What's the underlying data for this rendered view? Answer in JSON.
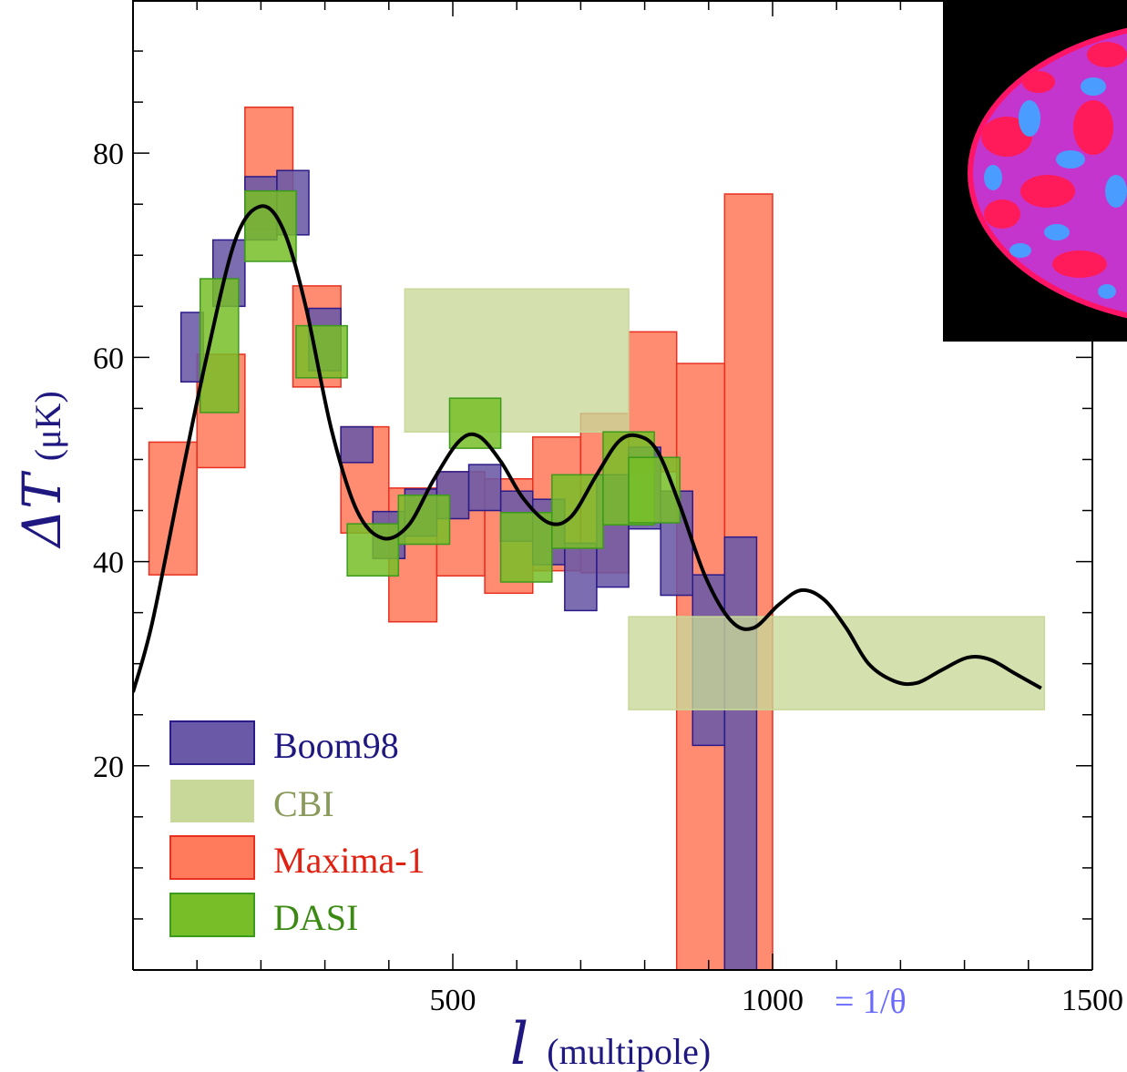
{
  "chart_data": {
    "type": "bar",
    "xlabel": {
      "symbol": "l",
      "text": "(multipole)"
    },
    "ylabel": {
      "symbol": "ΔT",
      "text": "(μK)"
    },
    "xlim": [
      0,
      1500
    ],
    "ylim": [
      0,
      95
    ],
    "x_ticks": [
      500,
      1000,
      1500
    ],
    "y_ticks": [
      20,
      40,
      60,
      80
    ],
    "annotation": "= 1/θ",
    "legend_position": "bottom-left",
    "grid": false,
    "series": [
      {
        "name": "Boom98",
        "fill": "#6a59a6",
        "stroke": "#2a1a8a",
        "label_color": "#1e1880",
        "boxes": [
          [
            75,
            110,
            57.6,
            64.4
          ],
          [
            125,
            175,
            65.0,
            71.5
          ],
          [
            175,
            225,
            71.5,
            77.7
          ],
          [
            225,
            275,
            72.0,
            78.3
          ],
          [
            275,
            325,
            58.7,
            64.8
          ],
          [
            325,
            375,
            49.7,
            53.2
          ],
          [
            375,
            425,
            40.3,
            44.9
          ],
          [
            425,
            475,
            42.5,
            47.1
          ],
          [
            475,
            525,
            44.2,
            48.8
          ],
          [
            525,
            575,
            45.0,
            49.5
          ],
          [
            575,
            625,
            42.0,
            46.9
          ],
          [
            625,
            675,
            39.7,
            46.1
          ],
          [
            675,
            725,
            35.2,
            41.8
          ],
          [
            725,
            775,
            37.5,
            48.5
          ],
          [
            775,
            825,
            43.2,
            51.2
          ],
          [
            825,
            875,
            36.7,
            46.9
          ],
          [
            875,
            925,
            22.0,
            38.7
          ],
          [
            925,
            975,
            0,
            42.4
          ]
        ]
      },
      {
        "name": "CBI",
        "fill": "#c8d898",
        "stroke": "#c8d898",
        "label_color": "#8a9a5a",
        "boxes": [
          [
            425,
            775,
            52.7,
            66.7
          ],
          [
            775,
            1425,
            25.5,
            34.6
          ]
        ]
      },
      {
        "name": "Maxima-1",
        "fill": "#ff7b5c",
        "stroke": "#e83020",
        "label_color": "#e02010",
        "boxes": [
          [
            25,
            100,
            38.7,
            51.7
          ],
          [
            100,
            175,
            49.2,
            60.3
          ],
          [
            175,
            250,
            72.5,
            84.5
          ],
          [
            250,
            325,
            57.1,
            67.0
          ],
          [
            325,
            400,
            42.8,
            53.2
          ],
          [
            400,
            475,
            34.1,
            47.2
          ],
          [
            475,
            550,
            38.6,
            48.8
          ],
          [
            550,
            625,
            36.9,
            48.1
          ],
          [
            625,
            700,
            39.1,
            52.2
          ],
          [
            700,
            775,
            38.9,
            54.5
          ],
          [
            775,
            850,
            48.8,
            62.5
          ],
          [
            850,
            925,
            0,
            59.4
          ],
          [
            925,
            1000,
            0,
            76.0
          ]
        ]
      },
      {
        "name": "DASI",
        "fill": "#78be28",
        "stroke": "#3c9a1c",
        "label_color": "#3c8a14",
        "boxes": [
          [
            105,
            165,
            54.6,
            67.7
          ],
          [
            175,
            255,
            69.4,
            76.3
          ],
          [
            255,
            335,
            58.0,
            63.1
          ],
          [
            335,
            415,
            38.6,
            43.7
          ],
          [
            415,
            495,
            41.7,
            46.5
          ],
          [
            495,
            575,
            51.1,
            56.0
          ],
          [
            575,
            655,
            38.0,
            44.8
          ],
          [
            655,
            735,
            41.3,
            48.5
          ],
          [
            735,
            815,
            43.6,
            52.7
          ],
          [
            775,
            855,
            43.8,
            50.2
          ]
        ]
      }
    ],
    "fit_curve": {
      "color": "#000000",
      "points": [
        [
          0,
          27.2
        ],
        [
          30,
          34
        ],
        [
          75,
          48
        ],
        [
          115,
          60
        ],
        [
          160,
          71.5
        ],
        [
          200,
          74.8
        ],
        [
          235,
          72.5
        ],
        [
          270,
          65
        ],
        [
          310,
          53
        ],
        [
          350,
          45
        ],
        [
          390,
          42.3
        ],
        [
          430,
          43.5
        ],
        [
          470,
          48
        ],
        [
          510,
          51.8
        ],
        [
          540,
          52.3
        ],
        [
          575,
          49.8
        ],
        [
          610,
          46.2
        ],
        [
          650,
          43.8
        ],
        [
          685,
          44.4
        ],
        [
          725,
          48.5
        ],
        [
          760,
          51.8
        ],
        [
          790,
          52.3
        ],
        [
          820,
          50.8
        ],
        [
          855,
          45.5
        ],
        [
          895,
          38.5
        ],
        [
          935,
          34.2
        ],
        [
          970,
          33.5
        ],
        [
          1010,
          35.8
        ],
        [
          1045,
          37.2
        ],
        [
          1080,
          36.3
        ],
        [
          1115,
          33.5
        ],
        [
          1150,
          30
        ],
        [
          1190,
          28.3
        ],
        [
          1225,
          28.1
        ],
        [
          1265,
          29.4
        ],
        [
          1305,
          30.6
        ],
        [
          1340,
          30.4
        ],
        [
          1380,
          29
        ],
        [
          1420,
          27.6
        ]
      ]
    }
  },
  "inset": {
    "name": "cmb-sky-map-image",
    "colors": [
      "#000000",
      "#ff1060",
      "#b040ff",
      "#40a0ff"
    ]
  }
}
